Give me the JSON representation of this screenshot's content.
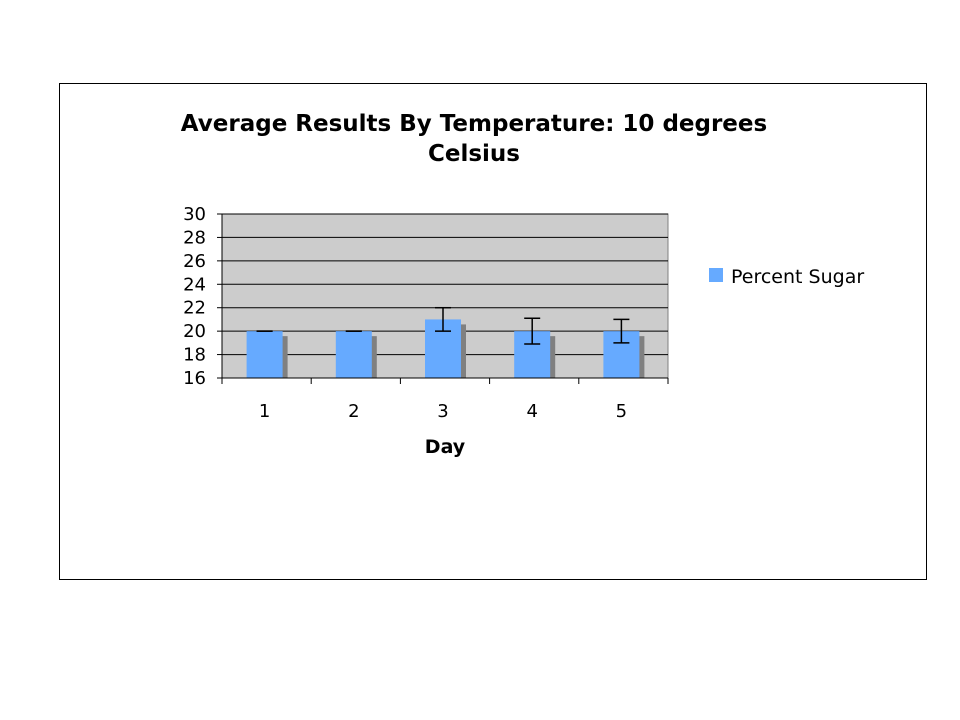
{
  "chart_data": {
    "type": "bar",
    "title_lines": [
      "Average Results By Temperature: 10 degrees",
      "Celsius"
    ],
    "xlabel": "Day",
    "ylabel": "",
    "categories": [
      "1",
      "2",
      "3",
      "4",
      "5"
    ],
    "series": [
      {
        "name": "Percent Sugar",
        "values": [
          20,
          20,
          21,
          20,
          20
        ],
        "error": [
          0,
          0,
          1,
          1.1,
          1
        ],
        "color": "#66aaff",
        "shadow_color": "#808080"
      }
    ],
    "ylim": [
      16,
      30
    ],
    "yticks": [
      "16",
      "18",
      "20",
      "22",
      "24",
      "26",
      "28",
      "30"
    ],
    "grid": true,
    "plot_background": "#cccccc",
    "legend_position": "right"
  }
}
